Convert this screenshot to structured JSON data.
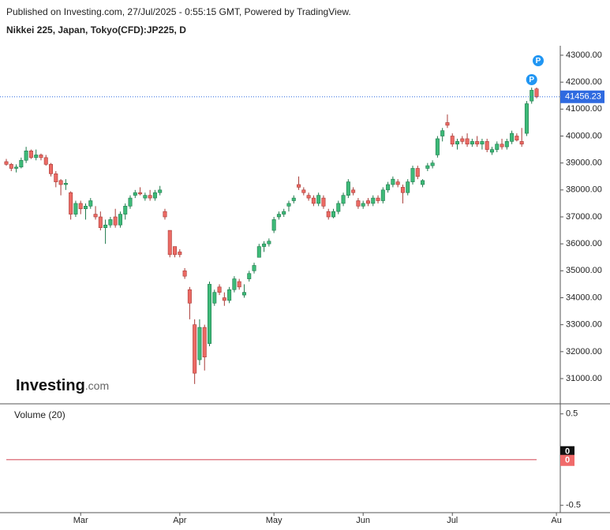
{
  "header": {
    "published": "Published on Investing.com, 27/Jul/2025 - 0:55:15 GMT, Powered by TradingView.",
    "symbol": "Nikkei 225, Japan, Tokyo(CFD):JP225, D"
  },
  "logo": {
    "brand": "Investing",
    "suffix": ".com"
  },
  "chart_data": {
    "type": "candlestick",
    "up_color": "#3dba78",
    "down_color": "#ec6a64",
    "last_price_color": "#2f6ae0",
    "categories": [
      null,
      null,
      null,
      null,
      null,
      null,
      null,
      null,
      null,
      null,
      null,
      null,
      null,
      null,
      null,
      "Mar",
      null,
      null,
      null,
      null,
      null,
      null,
      null,
      null,
      null,
      null,
      null,
      null,
      null,
      null,
      null,
      null,
      null,
      null,
      null,
      "Apr",
      null,
      null,
      null,
      null,
      null,
      null,
      null,
      null,
      null,
      null,
      null,
      null,
      null,
      null,
      null,
      null,
      null,
      null,
      "May",
      null,
      null,
      null,
      null,
      null,
      null,
      null,
      null,
      null,
      null,
      null,
      null,
      null,
      null,
      null,
      null,
      null,
      "Jun",
      null,
      null,
      null,
      null,
      null,
      null,
      null,
      null,
      null,
      null,
      null,
      null,
      null,
      null,
      null,
      null,
      null,
      "Jul",
      null,
      null,
      null,
      null,
      null,
      null,
      null,
      null,
      null,
      null,
      null,
      null,
      null,
      null,
      null,
      null,
      null,
      null,
      null,
      null,
      "Au"
    ],
    "open": [
      39050,
      38950,
      38800,
      38850,
      39100,
      39450,
      39200,
      39300,
      39200,
      38950,
      38600,
      38350,
      38200,
      37900,
      37100,
      37500,
      37300,
      37400,
      37100,
      37000,
      36600,
      36700,
      37000,
      36700,
      37100,
      37400,
      37800,
      37900,
      37700,
      37800,
      37700,
      37900,
      37200,
      36500,
      35900,
      35700,
      35000,
      34300,
      33000,
      31700,
      32900,
      32300,
      33800,
      34400,
      34000,
      33900,
      34300,
      34600,
      34100,
      34700,
      35000,
      35500,
      35900,
      36000,
      36500,
      37000,
      37100,
      37400,
      37600,
      38200,
      38000,
      37800,
      37700,
      37500,
      37700,
      37200,
      37000,
      37200,
      37500,
      37800,
      38000,
      37600,
      37400,
      37600,
      37500,
      37700,
      37600,
      38000,
      38200,
      38300,
      38100,
      37900,
      38300,
      38800,
      38200,
      38800,
      38900,
      39300,
      40000,
      40500,
      40000,
      39700,
      39900,
      39900,
      39700,
      39800,
      39700,
      39800,
      39400,
      39500,
      39700,
      39600,
      39800,
      40000,
      39800,
      40100,
      41300,
      41750,
      null,
      null,
      null,
      null
    ],
    "high": [
      39150,
      39000,
      38950,
      39200,
      39600,
      39500,
      39500,
      39350,
      39300,
      39000,
      38700,
      38400,
      38400,
      37950,
      37600,
      37600,
      37500,
      37700,
      37400,
      37200,
      36900,
      37000,
      37300,
      37200,
      37500,
      37800,
      38000,
      38100,
      37900,
      38000,
      38000,
      38150,
      37300,
      36500,
      35900,
      35800,
      35100,
      34400,
      33200,
      33200,
      33000,
      34600,
      34300,
      34500,
      34200,
      34400,
      34800,
      34700,
      34500,
      35000,
      35300,
      36000,
      36100,
      36200,
      37000,
      37200,
      37300,
      37600,
      37800,
      38500,
      38100,
      37900,
      37800,
      37900,
      37800,
      37300,
      37300,
      37600,
      37900,
      38400,
      38100,
      37700,
      37600,
      37700,
      37800,
      37800,
      38100,
      38300,
      38500,
      38400,
      38200,
      38400,
      38900,
      38900,
      38400,
      39000,
      39100,
      40000,
      40300,
      40800,
      40100,
      39900,
      40000,
      40100,
      39900,
      40000,
      39900,
      39900,
      39600,
      39800,
      39900,
      39900,
      40200,
      40100,
      40300,
      41300,
      41800,
      41800,
      null,
      null,
      null,
      null
    ],
    "low": [
      38900,
      38700,
      38650,
      38800,
      39000,
      39150,
      39100,
      39100,
      38900,
      38500,
      38100,
      37800,
      38000,
      36900,
      37000,
      37100,
      36900,
      37300,
      36900,
      36500,
      36000,
      36600,
      36600,
      36600,
      36900,
      37300,
      37700,
      37800,
      37600,
      37600,
      37600,
      37800,
      36900,
      35500,
      35500,
      35500,
      34700,
      33200,
      30800,
      31500,
      31300,
      32200,
      33700,
      34100,
      33700,
      33800,
      34200,
      34300,
      34000,
      34600,
      34900,
      35500,
      35700,
      35900,
      36400,
      36900,
      37000,
      37200,
      37500,
      38000,
      37800,
      37600,
      37400,
      37400,
      37300,
      36900,
      36950,
      37100,
      37400,
      37700,
      37800,
      37300,
      37300,
      37400,
      37400,
      37500,
      37500,
      37900,
      38100,
      38100,
      37500,
      37800,
      38200,
      38400,
      38100,
      38700,
      38800,
      39200,
      39800,
      40300,
      39600,
      39500,
      39700,
      39600,
      39600,
      39600,
      39500,
      39400,
      39300,
      39400,
      39500,
      39500,
      39700,
      39800,
      39600,
      40000,
      41200,
      41400,
      null,
      null,
      null,
      null
    ],
    "close": [
      38950,
      38800,
      38850,
      39100,
      39450,
      39200,
      39300,
      39200,
      38950,
      38600,
      38300,
      38200,
      38250,
      37100,
      37500,
      37300,
      37400,
      37600,
      37000,
      36600,
      36700,
      36900,
      36700,
      37100,
      37400,
      37700,
      37900,
      37850,
      37800,
      37700,
      37900,
      38000,
      37000,
      35600,
      35600,
      35600,
      34800,
      33800,
      31200,
      32900,
      31800,
      34500,
      34200,
      34200,
      33900,
      34300,
      34700,
      34400,
      34200,
      34900,
      35200,
      35900,
      36000,
      36100,
      36900,
      37100,
      37200,
      37500,
      37700,
      38100,
      37900,
      37700,
      37500,
      37800,
      37400,
      37000,
      37200,
      37500,
      37800,
      38300,
      37900,
      37400,
      37500,
      37500,
      37700,
      37600,
      38000,
      38200,
      38400,
      38200,
      37900,
      38300,
      38800,
      38500,
      38350,
      38900,
      39000,
      39900,
      40200,
      40400,
      39700,
      39800,
      39800,
      39700,
      39800,
      39700,
      39800,
      39500,
      39500,
      39700,
      39600,
      39800,
      40100,
      39850,
      39700,
      41200,
      41700,
      41456.23,
      null,
      null,
      null,
      null
    ],
    "markers": [
      "P",
      "P"
    ],
    "ylim": [
      30064,
      43351
    ],
    "yticks": [
      {
        "value": 31000,
        "label": "31000.00"
      },
      {
        "value": 32000,
        "label": "32000.00"
      },
      {
        "value": 33000,
        "label": "33000.00"
      },
      {
        "value": 34000,
        "label": "34000.00"
      },
      {
        "value": 35000,
        "label": "35000.00"
      },
      {
        "value": 36000,
        "label": "36000.00"
      },
      {
        "value": 37000,
        "label": "37000.00"
      },
      {
        "value": 38000,
        "label": "38000.00"
      },
      {
        "value": 39000,
        "label": "39000.00"
      },
      {
        "value": 40000,
        "label": "40000.00"
      },
      {
        "value": 41000,
        "label": "41000.00"
      },
      {
        "value": 42000,
        "label": "42000.00"
      },
      {
        "value": 43000,
        "label": "43000.00"
      }
    ],
    "volume": {
      "title": "Volume (20)",
      "ylim": [
        -0.58,
        0.61
      ],
      "yticks": [
        0.5,
        -0.5
      ],
      "color": "#9aa0a6",
      "ma_color": "#e0808a",
      "values": [
        0,
        0,
        0,
        0,
        0,
        0,
        0,
        0,
        0,
        0,
        0,
        0,
        0,
        0,
        0,
        0,
        0,
        0,
        0,
        0,
        0,
        0,
        0,
        0,
        0,
        0,
        0,
        0,
        0,
        0,
        0,
        0,
        0,
        0,
        0,
        0,
        0,
        0,
        0,
        0,
        0,
        0,
        0,
        0,
        0,
        0,
        0,
        0,
        0,
        0,
        0,
        0,
        0,
        0,
        0,
        0,
        0,
        0,
        0,
        0,
        0,
        0,
        0,
        0,
        0,
        0,
        0,
        0,
        0,
        0,
        0,
        0,
        0,
        0,
        0,
        0,
        0,
        0,
        0,
        0,
        0,
        0,
        0,
        0,
        0,
        0,
        0,
        0,
        0,
        0,
        0,
        0,
        0,
        0,
        0,
        0,
        0,
        0,
        0,
        0,
        0,
        0,
        0,
        0,
        0,
        0,
        0,
        0,
        null,
        null,
        null,
        null
      ],
      "ma": [
        0,
        0,
        0,
        0,
        0,
        0,
        0,
        0,
        0,
        0,
        0,
        0,
        0,
        0,
        0,
        0,
        0,
        0,
        0,
        0,
        0,
        0,
        0,
        0,
        0,
        0,
        0,
        0,
        0,
        0,
        0,
        0,
        0,
        0,
        0,
        0,
        0,
        0,
        0,
        0,
        0,
        0,
        0,
        0,
        0,
        0,
        0,
        0,
        0,
        0,
        0,
        0,
        0,
        0,
        0,
        0,
        0,
        0,
        0,
        0,
        0,
        0,
        0,
        0,
        0,
        0,
        0,
        0,
        0,
        0,
        0,
        0,
        0,
        0,
        0,
        0,
        0,
        0,
        0,
        0,
        0,
        0,
        0,
        0,
        0,
        0,
        0,
        0,
        0,
        0,
        0,
        0,
        0,
        0,
        0,
        0,
        0,
        0,
        0,
        0,
        0,
        0,
        0,
        0,
        0,
        0,
        0,
        0,
        null,
        null,
        null,
        null
      ]
    }
  }
}
